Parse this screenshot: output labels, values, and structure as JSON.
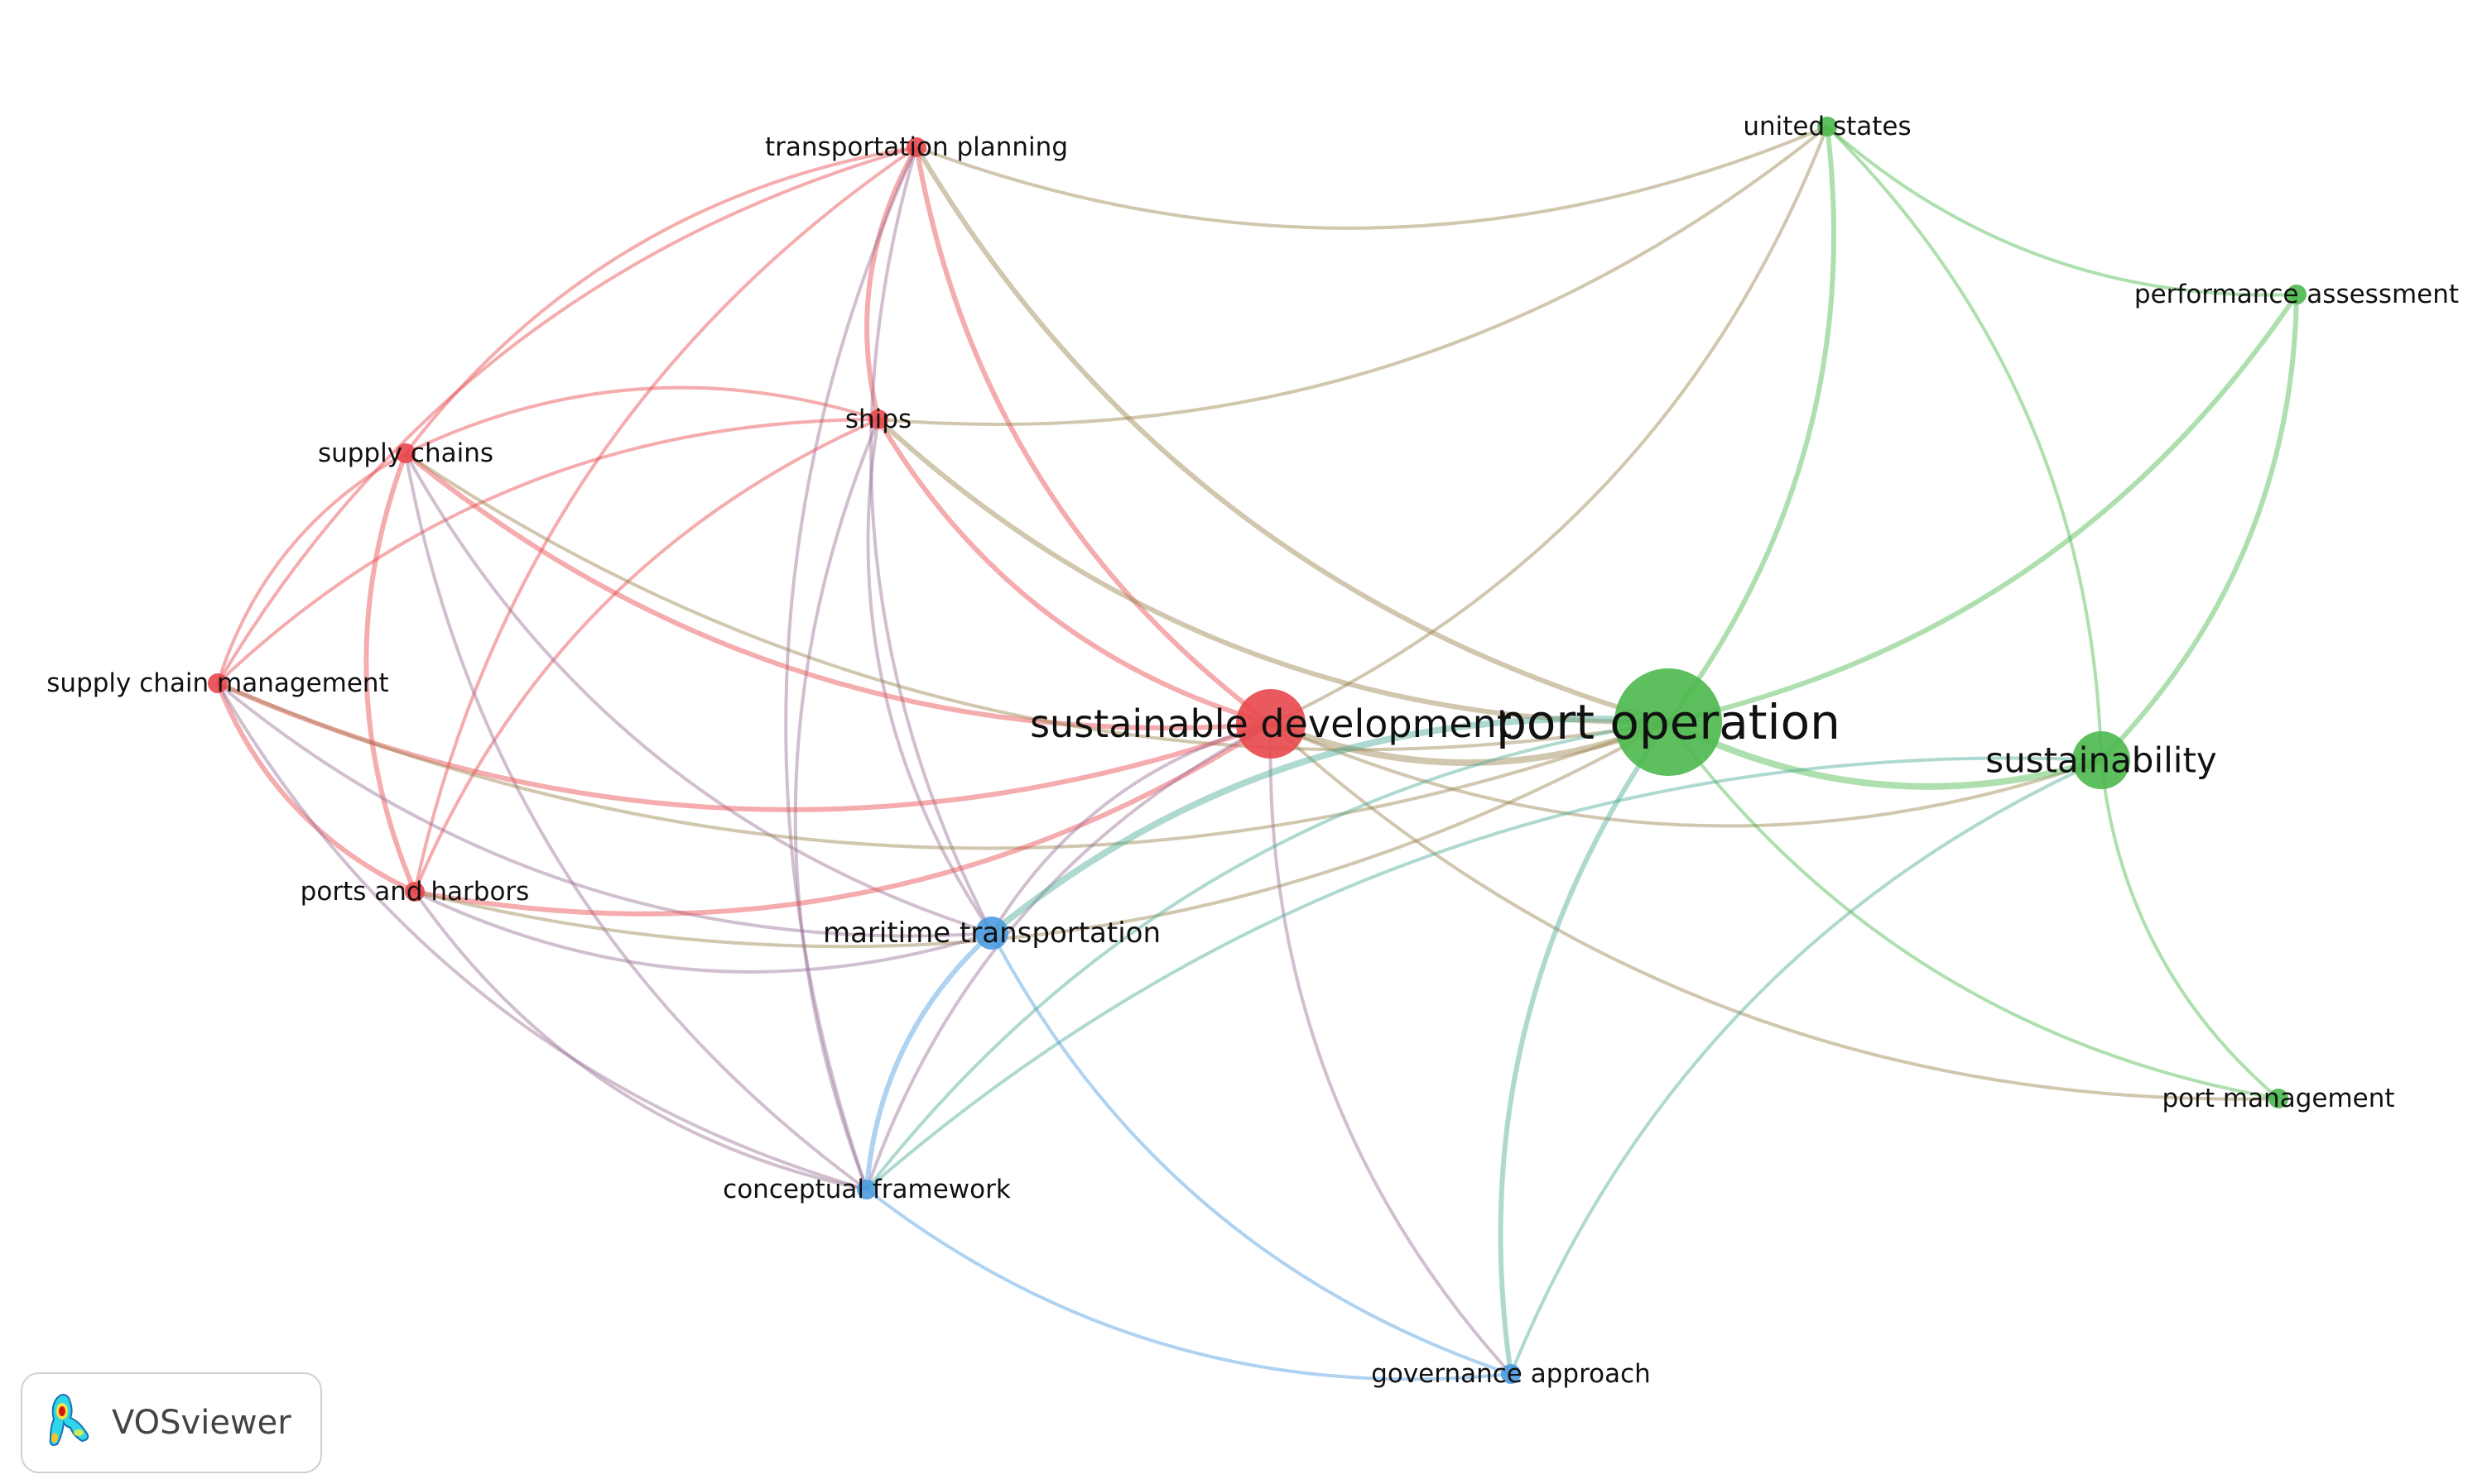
{
  "network": {
    "cluster_colors": {
      "red": "#e8474b",
      "green": "#4cb84c",
      "blue": "#4b9be0"
    },
    "nodes": [
      {
        "label": "transportation planning",
        "cluster": "red",
        "size": "small"
      },
      {
        "label": "ships",
        "cluster": "red",
        "size": "small"
      },
      {
        "label": "supply chains",
        "cluster": "red",
        "size": "small"
      },
      {
        "label": "supply chain management",
        "cluster": "red",
        "size": "small"
      },
      {
        "label": "ports and harbors",
        "cluster": "red",
        "size": "small"
      },
      {
        "label": "sustainable development",
        "cluster": "red",
        "size": "large"
      },
      {
        "label": "port operation",
        "cluster": "green",
        "size": "largest"
      },
      {
        "label": "sustainability",
        "cluster": "green",
        "size": "medium"
      },
      {
        "label": "united states",
        "cluster": "green",
        "size": "small"
      },
      {
        "label": "performance assessment",
        "cluster": "green",
        "size": "small"
      },
      {
        "label": "port management",
        "cluster": "green",
        "size": "small"
      },
      {
        "label": "maritime transportation",
        "cluster": "blue",
        "size": "medium-small"
      },
      {
        "label": "conceptual framework",
        "cluster": "blue",
        "size": "small"
      },
      {
        "label": "governance approach",
        "cluster": "blue",
        "size": "small"
      }
    ],
    "links": [
      [
        0,
        1,
        2
      ],
      [
        0,
        2,
        1
      ],
      [
        0,
        3,
        1
      ],
      [
        0,
        5,
        2
      ],
      [
        0,
        6,
        2
      ],
      [
        0,
        8,
        1
      ],
      [
        0,
        4,
        1
      ],
      [
        0,
        11,
        1
      ],
      [
        0,
        12,
        1
      ],
      [
        1,
        2,
        1
      ],
      [
        1,
        3,
        1
      ],
      [
        1,
        5,
        2
      ],
      [
        1,
        6,
        2
      ],
      [
        1,
        4,
        1
      ],
      [
        1,
        8,
        1
      ],
      [
        1,
        11,
        1
      ],
      [
        1,
        12,
        1
      ],
      [
        2,
        3,
        1
      ],
      [
        2,
        4,
        2
      ],
      [
        2,
        5,
        2
      ],
      [
        2,
        6,
        1
      ],
      [
        2,
        11,
        1
      ],
      [
        2,
        12,
        1
      ],
      [
        3,
        4,
        2
      ],
      [
        3,
        5,
        2
      ],
      [
        3,
        6,
        1
      ],
      [
        3,
        11,
        1
      ],
      [
        3,
        12,
        1
      ],
      [
        4,
        5,
        2
      ],
      [
        4,
        6,
        1
      ],
      [
        4,
        11,
        1
      ],
      [
        4,
        12,
        1
      ],
      [
        5,
        6,
        3
      ],
      [
        5,
        11,
        1
      ],
      [
        5,
        12,
        1
      ],
      [
        5,
        13,
        1
      ],
      [
        5,
        8,
        1
      ],
      [
        5,
        10,
        1
      ],
      [
        5,
        7,
        1
      ],
      [
        6,
        7,
        3
      ],
      [
        6,
        8,
        2
      ],
      [
        6,
        9,
        2
      ],
      [
        6,
        10,
        1
      ],
      [
        6,
        11,
        3
      ],
      [
        6,
        12,
        1
      ],
      [
        6,
        13,
        2
      ],
      [
        7,
        9,
        2
      ],
      [
        7,
        8,
        1
      ],
      [
        7,
        10,
        1
      ],
      [
        7,
        12,
        1
      ],
      [
        7,
        13,
        1
      ],
      [
        8,
        9,
        1
      ],
      [
        11,
        12,
        2
      ],
      [
        11,
        13,
        1
      ],
      [
        12,
        13,
        1
      ]
    ]
  },
  "logo": {
    "text": "VOSviewer"
  }
}
